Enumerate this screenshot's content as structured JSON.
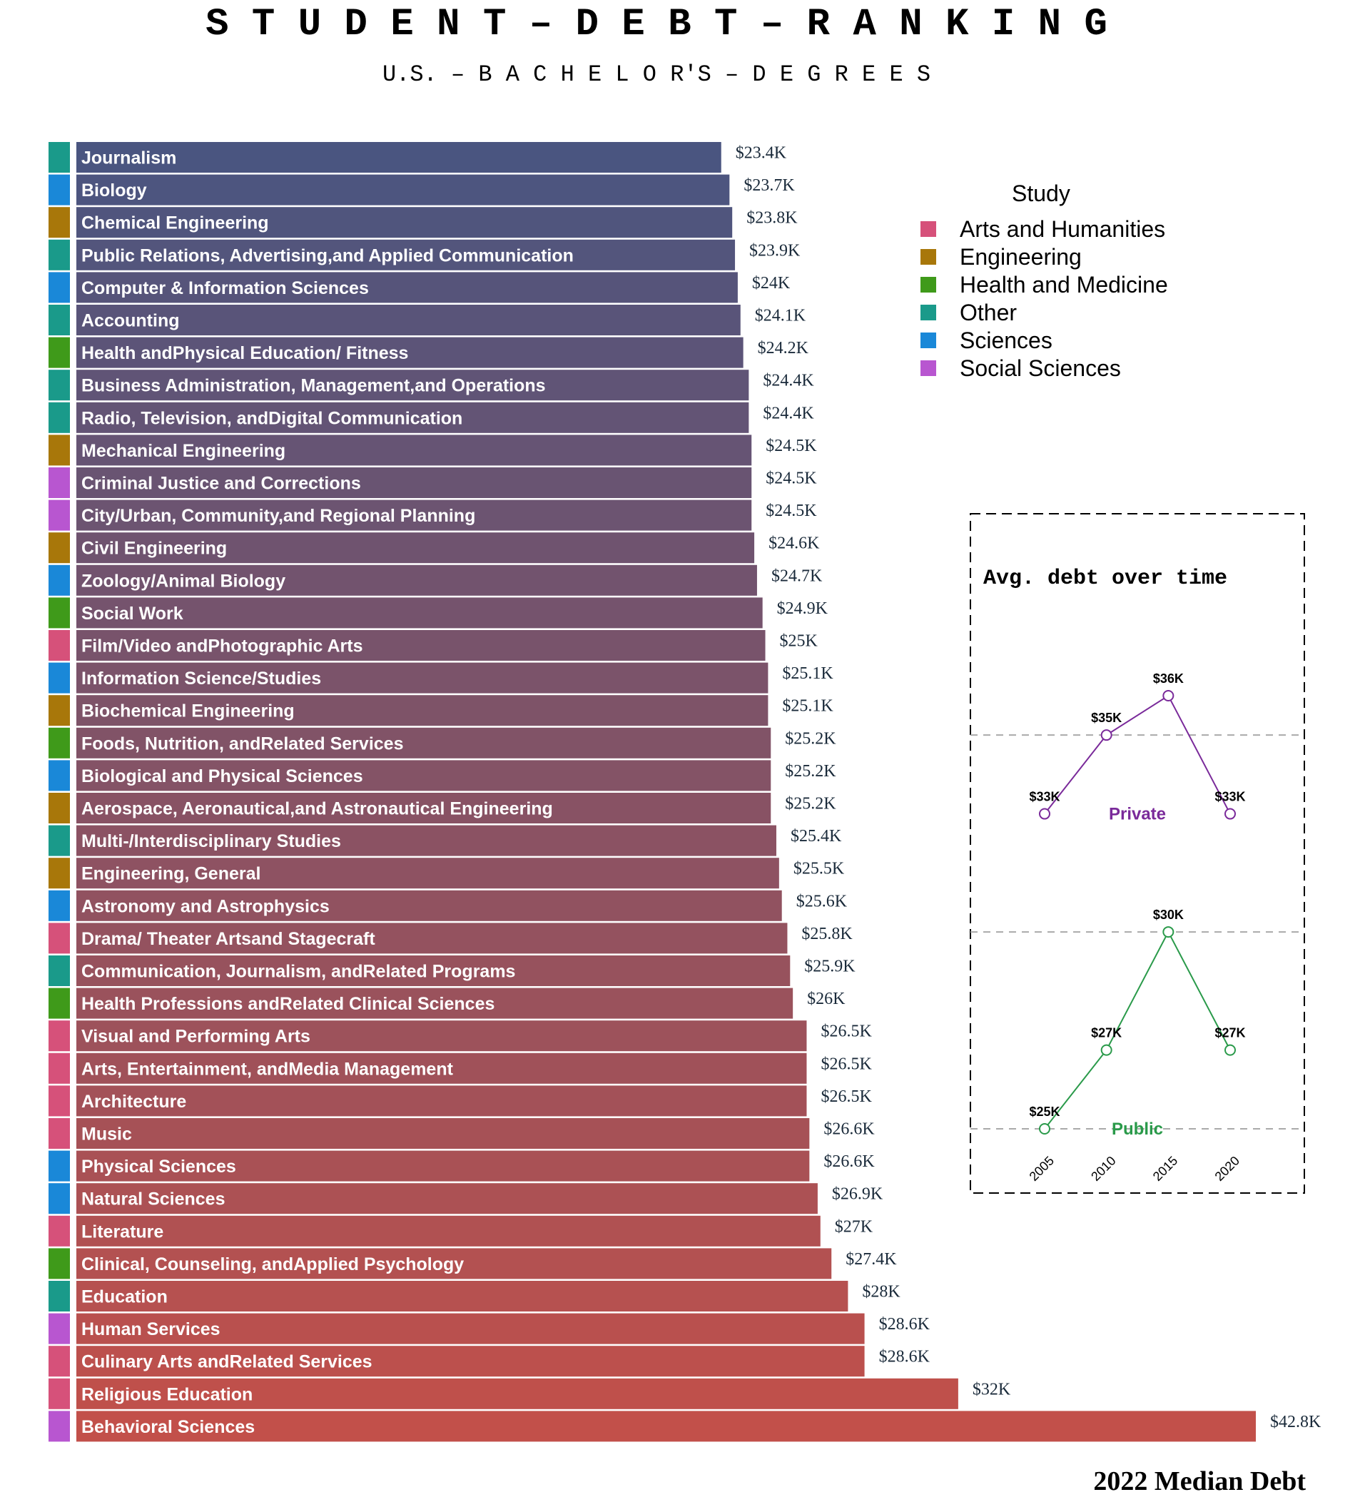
{
  "title": "S T U D E N T – D E B T – R A N K I N G",
  "subtitle": "U.S. – B A C H E L O R'S – D E G R E E S",
  "caption": "2022 Median Debt",
  "chart_data": [
    {
      "type": "bar",
      "orientation": "horizontal",
      "title": "S T U D E N T – D E B T – R A N K I N G",
      "subtitle": "U.S. – B A C H E L O R'S – D E G R E E S",
      "caption": "2022 Median Debt",
      "xlim": [
        0,
        42.8
      ],
      "unit": "$K",
      "legend": {
        "title": "Study",
        "placement": "top-right",
        "items": [
          {
            "name": "Arts and Humanities",
            "color": "#d6517a"
          },
          {
            "name": "Engineering",
            "color": "#a8770a"
          },
          {
            "name": "Health and Medicine",
            "color": "#3f9a1a"
          },
          {
            "name": "Other",
            "color": "#1a9a8a"
          },
          {
            "name": "Sciences",
            "color": "#1a88d8"
          },
          {
            "name": "Social Sciences",
            "color": "#b856d0"
          }
        ]
      },
      "bar_gradient": {
        "low": "#4a5580",
        "high": "#c2504a"
      },
      "bars": [
        {
          "label": "Journalism",
          "value": 23.4,
          "text": "$23.4K",
          "category": "Other"
        },
        {
          "label": "Biology",
          "value": 23.7,
          "text": "$23.7K",
          "category": "Sciences"
        },
        {
          "label": "Chemical Engineering",
          "value": 23.8,
          "text": "$23.8K",
          "category": "Engineering"
        },
        {
          "label": "Public Relations, Advertising,and Applied Communication",
          "value": 23.9,
          "text": "$23.9K",
          "category": "Other"
        },
        {
          "label": "Computer & Information Sciences",
          "value": 24.0,
          "text": "$24K",
          "category": "Sciences"
        },
        {
          "label": "Accounting",
          "value": 24.1,
          "text": "$24.1K",
          "category": "Other"
        },
        {
          "label": "Health andPhysical Education/ Fitness",
          "value": 24.2,
          "text": "$24.2K",
          "category": "Health and Medicine"
        },
        {
          "label": "Business Administration, Management,and Operations",
          "value": 24.4,
          "text": "$24.4K",
          "category": "Other"
        },
        {
          "label": "Radio, Television, andDigital Communication",
          "value": 24.4,
          "text": "$24.4K",
          "category": "Other"
        },
        {
          "label": "Mechanical Engineering",
          "value": 24.5,
          "text": "$24.5K",
          "category": "Engineering"
        },
        {
          "label": "Criminal Justice and Corrections",
          "value": 24.5,
          "text": "$24.5K",
          "category": "Social Sciences"
        },
        {
          "label": "City/Urban, Community,and Regional Planning",
          "value": 24.5,
          "text": "$24.5K",
          "category": "Social Sciences"
        },
        {
          "label": "Civil Engineering",
          "value": 24.6,
          "text": "$24.6K",
          "category": "Engineering"
        },
        {
          "label": "Zoology/Animal Biology",
          "value": 24.7,
          "text": "$24.7K",
          "category": "Sciences"
        },
        {
          "label": "Social Work",
          "value": 24.9,
          "text": "$24.9K",
          "category": "Health and Medicine"
        },
        {
          "label": "Film/Video andPhotographic Arts",
          "value": 25.0,
          "text": "$25K",
          "category": "Arts and Humanities"
        },
        {
          "label": "Information Science/Studies",
          "value": 25.1,
          "text": "$25.1K",
          "category": "Sciences"
        },
        {
          "label": "Biochemical Engineering",
          "value": 25.1,
          "text": "$25.1K",
          "category": "Engineering"
        },
        {
          "label": "Foods, Nutrition, andRelated Services",
          "value": 25.2,
          "text": "$25.2K",
          "category": "Health and Medicine"
        },
        {
          "label": "Biological and Physical Sciences",
          "value": 25.2,
          "text": "$25.2K",
          "category": "Sciences"
        },
        {
          "label": "Aerospace, Aeronautical,and Astronautical Engineering",
          "value": 25.2,
          "text": "$25.2K",
          "category": "Engineering"
        },
        {
          "label": "Multi-/Interdisciplinary Studies",
          "value": 25.4,
          "text": "$25.4K",
          "category": "Other"
        },
        {
          "label": "Engineering, General",
          "value": 25.5,
          "text": "$25.5K",
          "category": "Engineering"
        },
        {
          "label": "Astronomy and Astrophysics",
          "value": 25.6,
          "text": "$25.6K",
          "category": "Sciences"
        },
        {
          "label": "Drama/ Theater Artsand Stagecraft",
          "value": 25.8,
          "text": "$25.8K",
          "category": "Arts and Humanities"
        },
        {
          "label": "Communication, Journalism, andRelated Programs",
          "value": 25.9,
          "text": "$25.9K",
          "category": "Other"
        },
        {
          "label": "Health Professions andRelated Clinical Sciences",
          "value": 26.0,
          "text": "$26K",
          "category": "Health and Medicine"
        },
        {
          "label": "Visual and Performing Arts",
          "value": 26.5,
          "text": "$26.5K",
          "category": "Arts and Humanities"
        },
        {
          "label": "Arts, Entertainment, andMedia Management",
          "value": 26.5,
          "text": "$26.5K",
          "category": "Arts and Humanities"
        },
        {
          "label": "Architecture",
          "value": 26.5,
          "text": "$26.5K",
          "category": "Arts and Humanities"
        },
        {
          "label": "Music",
          "value": 26.6,
          "text": "$26.6K",
          "category": "Arts and Humanities"
        },
        {
          "label": "Physical Sciences",
          "value": 26.6,
          "text": "$26.6K",
          "category": "Sciences"
        },
        {
          "label": "Natural Sciences",
          "value": 26.9,
          "text": "$26.9K",
          "category": "Sciences"
        },
        {
          "label": "Literature",
          "value": 27.0,
          "text": "$27K",
          "category": "Arts and Humanities"
        },
        {
          "label": "Clinical, Counseling, andApplied Psychology",
          "value": 27.4,
          "text": "$27.4K",
          "category": "Health and Medicine"
        },
        {
          "label": "Education",
          "value": 28.0,
          "text": "$28K",
          "category": "Other"
        },
        {
          "label": "Human Services",
          "value": 28.6,
          "text": "$28.6K",
          "category": "Social Sciences"
        },
        {
          "label": "Culinary Arts andRelated Services",
          "value": 28.6,
          "text": "$28.6K",
          "category": "Arts and Humanities"
        },
        {
          "label": "Religious Education",
          "value": 32.0,
          "text": "$32K",
          "category": "Arts and Humanities"
        },
        {
          "label": "Behavioral Sciences",
          "value": 42.8,
          "text": "$42.8K",
          "category": "Social Sciences"
        }
      ]
    },
    {
      "type": "line",
      "title": "Avg. debt over time",
      "x": [
        2005,
        2010,
        2015,
        2020
      ],
      "ylim": [
        25,
        36
      ],
      "grid": "horizontal dashed",
      "series": [
        {
          "name": "Private",
          "color": "#7a2a9a",
          "values": [
            33,
            35,
            36,
            33
          ],
          "labels": [
            "$33K",
            "$35K",
            "$36K",
            "$33K"
          ]
        },
        {
          "name": "Public",
          "color": "#2a9a4a",
          "values": [
            25,
            27,
            30,
            27
          ],
          "labels": [
            "$25K",
            "$27K",
            "$30K",
            "$27K"
          ]
        }
      ]
    }
  ]
}
